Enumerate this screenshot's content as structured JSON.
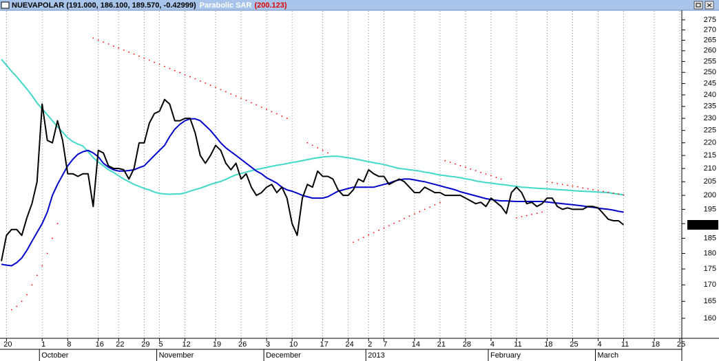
{
  "chart_data": {
    "type": "line",
    "title": "NUEVAPOLAR (191.000, 186.100, 189.570, -0.42999)",
    "indicator_value": "(200.123)",
    "y_scale": "log",
    "grid": "x",
    "ylim": [
      154.3,
      279.8
    ],
    "yticks": [
      160,
      165,
      170,
      175,
      180,
      185,
      190,
      195,
      200,
      205,
      210,
      215,
      220,
      225,
      230,
      235,
      240,
      245,
      250,
      255,
      260,
      265,
      270,
      275
    ],
    "months": [
      "October",
      "November",
      "December",
      "2013",
      "February",
      "March"
    ],
    "categories": [
      null,
      "20",
      null,
      null,
      null,
      null,
      null,
      null,
      "1",
      null,
      null,
      null,
      null,
      "8",
      null,
      null,
      null,
      null,
      null,
      "16",
      null,
      null,
      null,
      "22",
      null,
      null,
      null,
      null,
      "29",
      null,
      null,
      "5",
      null,
      null,
      null,
      null,
      "12",
      null,
      null,
      null,
      null,
      null,
      "19",
      null,
      null,
      null,
      null,
      "26",
      null,
      null,
      null,
      null,
      "3",
      null,
      null,
      null,
      null,
      "10",
      null,
      null,
      null,
      null,
      null,
      "17",
      null,
      null,
      null,
      null,
      "24",
      null,
      null,
      null,
      "2",
      null,
      null,
      "7",
      null,
      null,
      null,
      null,
      null,
      "14",
      null,
      null,
      null,
      null,
      "21",
      null,
      null,
      null,
      null,
      "28",
      null,
      null,
      null,
      null,
      "4",
      null,
      null,
      null,
      null,
      "11",
      null,
      null,
      null,
      null,
      null,
      "18",
      null,
      null,
      null,
      null,
      "25",
      null,
      null,
      null,
      null,
      "4",
      null,
      null,
      null,
      null,
      "11",
      null,
      null,
      null,
      null,
      null,
      "18",
      null,
      null,
      null,
      null,
      "25"
    ],
    "series": [
      {
        "color": "#000000",
        "type": "line",
        "values": [
          177.5,
          186,
          188,
          188,
          186,
          192,
          197,
          205,
          236,
          221,
          220,
          229,
          221,
          208,
          208,
          207,
          208,
          208,
          196,
          217,
          216,
          211,
          210,
          210,
          209.5,
          206,
          210,
          220,
          220,
          228,
          232,
          233,
          238,
          236,
          229,
          229,
          230,
          230,
          224,
          215,
          212,
          215,
          219,
          217,
          212,
          209.5,
          212,
          206,
          208,
          203,
          200,
          201,
          203,
          204,
          201,
          203,
          199,
          190,
          186,
          199,
          204,
          203,
          209,
          207,
          207,
          206,
          202,
          200,
          200,
          202,
          206,
          205,
          209.5,
          208,
          207,
          207,
          204,
          205,
          206,
          205,
          203,
          201,
          201,
          203,
          202,
          201,
          201,
          200,
          200,
          200,
          200,
          199,
          198,
          197,
          197.5,
          196,
          199,
          197.5,
          196,
          193.5,
          201,
          203,
          201,
          197,
          197.5,
          196,
          197,
          199,
          199,
          196,
          195,
          195.5,
          195,
          195,
          195,
          196,
          196,
          195.5,
          193.5,
          191.5,
          191,
          191,
          189.57,
          null,
          null,
          null,
          null,
          null,
          null,
          null,
          null,
          null,
          null,
          null
        ],
        "value_labels": [
          null,
          null,
          null,
          null,
          null,
          null,
          null,
          null,
          null,
          null,
          null,
          null,
          null,
          null,
          null,
          null,
          null,
          null,
          null,
          null,
          null,
          null,
          null,
          null,
          null,
          null,
          null,
          null,
          null,
          null,
          null,
          null,
          null,
          null,
          null,
          null,
          null,
          null,
          null,
          null,
          null,
          null,
          null,
          null,
          null,
          null,
          null,
          null,
          null,
          null,
          null,
          null,
          null,
          null,
          null,
          null,
          null,
          null,
          null,
          null,
          null,
          null,
          null,
          null,
          null,
          null,
          null,
          null,
          null,
          null,
          null,
          null,
          null,
          null,
          null,
          null,
          null,
          null,
          null,
          null,
          null,
          null,
          null,
          null,
          null,
          null,
          null,
          null,
          null,
          null,
          null,
          null,
          null,
          null,
          null,
          null,
          null,
          null,
          null,
          null,
          null,
          null,
          null,
          null,
          null,
          null,
          null,
          null,
          null,
          null,
          null,
          null,
          null,
          null,
          null,
          null,
          null,
          null,
          null,
          null,
          null,
          null,
          "189.570",
          null,
          null,
          null,
          null,
          null,
          null,
          null,
          null,
          null,
          null,
          null
        ]
      },
      {
        "color": "#0000cc",
        "type": "line",
        "values": [
          176.5,
          176.2,
          176,
          177,
          178.5,
          181,
          184,
          187,
          190,
          194,
          200,
          204,
          207.5,
          211,
          213.5,
          215.5,
          216.5,
          217,
          216,
          214.5,
          212,
          210.5,
          209.5,
          209,
          209,
          209.2,
          209.5,
          210.3,
          211,
          213,
          215,
          217,
          219,
          222.5,
          225.5,
          227.5,
          229,
          229.8,
          229.8,
          229,
          227,
          225,
          222.5,
          220,
          218,
          216.5,
          215,
          213.5,
          212,
          210.5,
          209,
          208,
          206.5,
          205.5,
          204.5,
          203,
          202,
          201.5,
          200.8,
          200,
          199.5,
          199,
          199,
          199,
          199.5,
          200.5,
          201.5,
          202,
          202.5,
          203,
          203,
          203,
          203,
          203,
          203.5,
          204,
          204.5,
          205.2,
          205.7,
          206,
          206,
          205.7,
          205.3,
          205,
          204.5,
          204,
          203.5,
          203,
          202.5,
          202,
          201.3,
          200.8,
          200.3,
          199.8,
          199.3,
          198.8,
          198.5,
          198.2,
          198,
          198,
          197.9,
          197.8,
          197.8,
          197.8,
          197.8,
          197.8,
          197.8,
          197.6,
          197.4,
          197.2,
          197,
          196.8,
          196.6,
          196.4,
          196.2,
          195.9,
          195.7,
          195.4,
          195.2,
          195,
          194.7,
          194.3,
          194,
          null,
          null,
          null,
          null,
          null,
          null,
          null,
          null,
          null,
          null,
          null
        ]
      },
      {
        "color": "#40d8c8",
        "type": "line",
        "values": [
          256,
          253.3,
          250.5,
          248,
          245.3,
          242.6,
          239.7,
          236.5,
          234,
          231.5,
          229,
          226.5,
          224.3,
          222,
          220.5,
          219.5,
          218.7,
          216.5,
          214.2,
          212.5,
          211,
          209.5,
          208.5,
          207.2,
          206,
          205,
          204,
          203.3,
          202.5,
          202,
          201.2,
          200.7,
          200.5,
          200.4,
          200.5,
          200.5,
          200.9,
          201.5,
          202.1,
          202.6,
          203.3,
          204,
          204.6,
          205.1,
          205.9,
          206.8,
          207.6,
          208.1,
          208.6,
          209.1,
          209.6,
          210,
          210.4,
          210.8,
          211.2,
          211.5,
          211.9,
          212.3,
          212.6,
          213,
          213.4,
          213.8,
          214.1,
          214.4,
          214.6,
          214.7,
          214.7,
          214.4,
          214.1,
          213.8,
          213.4,
          213,
          212.6,
          212.2,
          211.9,
          211.5,
          211,
          210.5,
          210,
          209.8,
          209.5,
          209.3,
          209,
          208.6,
          208.3,
          207.9,
          207.5,
          207.3,
          207,
          206.8,
          206.5,
          206.1,
          205.8,
          205.3,
          205,
          204.7,
          204.5,
          204.2,
          204,
          203.8,
          203.5,
          203.3,
          203,
          202.9,
          202.7,
          202.6,
          202.5,
          202.4,
          202.2,
          202.1,
          202,
          201.9,
          201.7,
          201.6,
          201.5,
          201.4,
          201.3,
          201.2,
          201.1,
          201,
          200.7,
          200.4,
          200.2,
          null,
          null,
          null,
          null,
          null,
          null,
          null,
          null,
          null,
          null,
          null
        ]
      },
      {
        "name": "Parabolic SAR",
        "color": "#ff0000",
        "type": "dots",
        "values": [
          null,
          null,
          162.5,
          163.5,
          165,
          167,
          170,
          173,
          176,
          180,
          185,
          190,
          null,
          null,
          null,
          null,
          null,
          null,
          266,
          265.1,
          264.1,
          263.2,
          262.2,
          261.3,
          260.3,
          259.4,
          258.4,
          257.5,
          256.5,
          255.6,
          254.6,
          253.7,
          252.7,
          251.8,
          250.8,
          249.9,
          248.9,
          248,
          247.1,
          246.1,
          245.2,
          244.2,
          243.3,
          242.3,
          241.4,
          240.4,
          239.5,
          238.5,
          237.6,
          236.6,
          235.7,
          234.7,
          233.8,
          232.8,
          231.9,
          230.9,
          230,
          null,
          null,
          null,
          220,
          219,
          218,
          217,
          216,
          null,
          null,
          null,
          null,
          183.7,
          184.5,
          185.3,
          186.1,
          186.9,
          187.7,
          188.5,
          189.3,
          190.1,
          190.9,
          191.8,
          192.6,
          193.4,
          194.2,
          195,
          195.8,
          196.6,
          197.4,
          213,
          212.4,
          211.7,
          211.1,
          210.5,
          209.8,
          209.2,
          208.5,
          207.9,
          207.3,
          206.6,
          206,
          null,
          null,
          192,
          192.4,
          192.8,
          193.2,
          193.6,
          194,
          205,
          204.7,
          204.3,
          204,
          203.7,
          203.4,
          203.1,
          202.7,
          202.4,
          202.1,
          201.8,
          201.4,
          201.1,
          200.8,
          200.5,
          200.123,
          null,
          null,
          null,
          null,
          null,
          null,
          null,
          null,
          null,
          null,
          null
        ]
      }
    ]
  }
}
